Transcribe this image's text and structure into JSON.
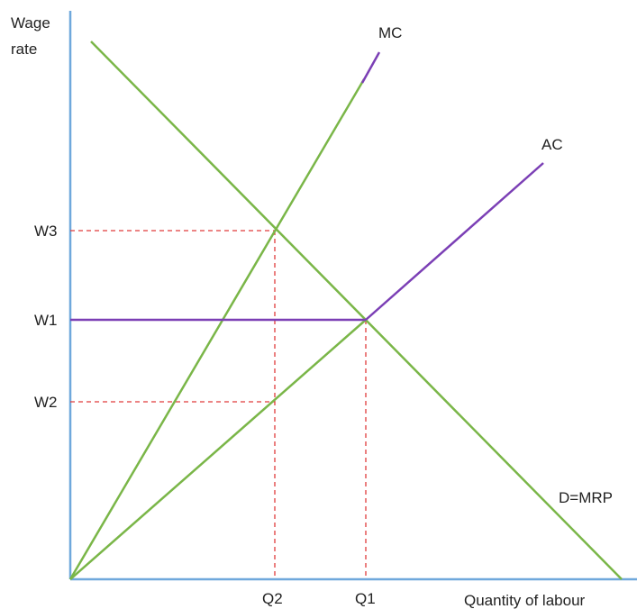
{
  "chart_data": {
    "type": "line",
    "title": "",
    "ylabel": [
      "Wage",
      "rate"
    ],
    "xlabel": "Quantity of labour",
    "x_ticks": [
      "Q2",
      "Q1"
    ],
    "y_ticks": [
      "W3",
      "W1",
      "W2"
    ],
    "series": [
      {
        "name": "MC",
        "color": "#7ab648"
      },
      {
        "name": "AC",
        "color": "#7ab648"
      },
      {
        "name": "D=MRP",
        "color": "#7ab648"
      },
      {
        "name": "W1",
        "color": "#7b3fb5"
      }
    ],
    "guide_color": "#e03b3b",
    "axis_color": "#6fa8dc",
    "highlight_color": "#7b3fb5"
  }
}
